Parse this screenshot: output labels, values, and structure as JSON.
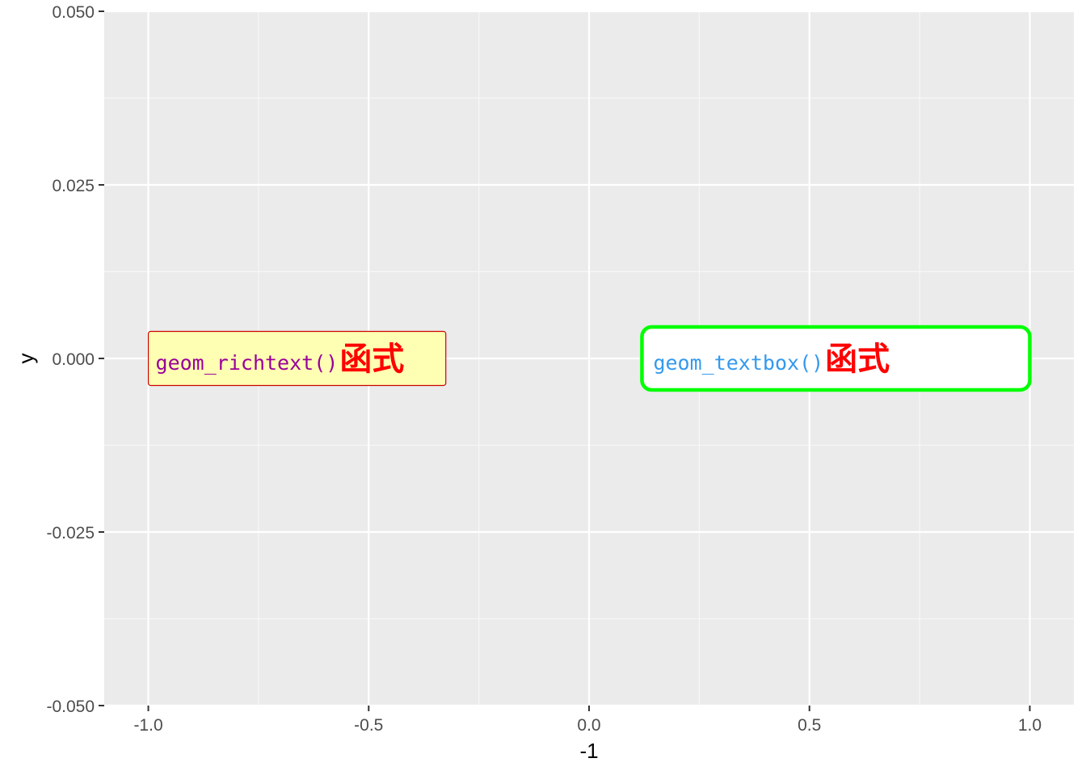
{
  "chart_data": {
    "type": "scatter",
    "xlabel": "-1",
    "ylabel": "y",
    "xlim": [
      -1.1,
      1.1
    ],
    "ylim": [
      -0.05,
      0.05
    ],
    "x_ticks": [
      -1.0,
      -0.5,
      0.0,
      0.5,
      1.0
    ],
    "x_tick_labels": [
      "-1.0",
      "-0.5",
      "0.0",
      "0.5",
      "1.0"
    ],
    "y_ticks": [
      -0.05,
      -0.025,
      0.0,
      0.025,
      0.05
    ],
    "y_tick_labels": [
      "-0.050",
      "-0.025",
      "0.000",
      "0.025",
      "0.050"
    ],
    "grid": true,
    "panel_background": "#ebebeb",
    "annotations": [
      {
        "kind": "richtext",
        "x": -1.0,
        "y": 0.0,
        "x_end": -0.325,
        "text_code": "geom_richtext()",
        "text_cjk": "函式",
        "code_color": "#990099",
        "cjk_color": "#ff0000",
        "fill": "#ffffb3",
        "border": "#cc0000"
      },
      {
        "kind": "textbox",
        "x": 0.12,
        "y": 0.0,
        "x_end": 1.0,
        "text_code": "geom_textbox()",
        "text_cjk": "函式",
        "code_color": "#3399ee",
        "cjk_color": "#ff0000",
        "fill": "#ffffff",
        "border": "#00ff00"
      }
    ]
  }
}
